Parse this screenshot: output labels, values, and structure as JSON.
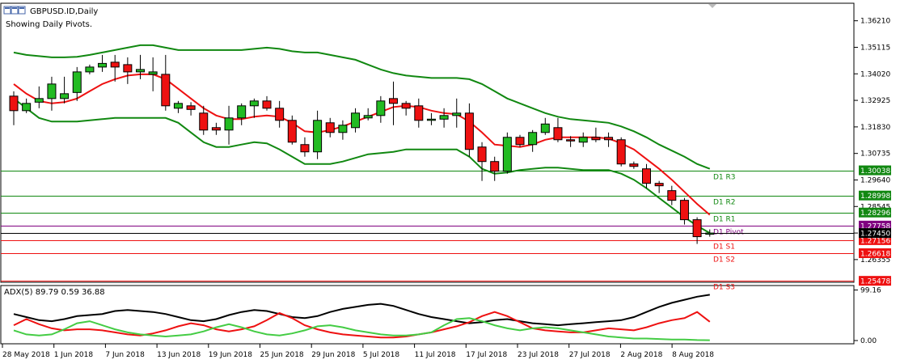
{
  "header": {
    "title": "GBPUSD.ID,Daily",
    "subtitle": "Showing Daily Pivots."
  },
  "colors": {
    "bull": "#22bb22",
    "bear": "#ee1111",
    "ma": "#ee1111",
    "band": "#118811",
    "r_line": "#118811",
    "pivot_line": "#800080",
    "s_line": "#ee1111",
    "adx_main": "#000000",
    "adx_minus": "#ee1111",
    "adx_plus": "#44cc44"
  },
  "chart_data": [
    {
      "type": "candlestick",
      "title": "GBPUSD.ID,Daily",
      "annotations": [
        "Showing Daily Pivots."
      ],
      "ylim": [
        1.2545,
        1.369
      ],
      "y_ticks": [
        "1.36210",
        "1.35115",
        "1.34020",
        "1.32925",
        "1.31830",
        "1.30735",
        "1.29640",
        "1.28545",
        "1.27450",
        "1.26355"
      ],
      "x_labels": [
        "28 May 2018",
        "1 Jun 2018",
        "7 Jun 2018",
        "13 Jun 2018",
        "19 Jun 2018",
        "25 Jun 2018",
        "29 Jun 2018",
        "5 Jul 2018",
        "11 Jul 2018",
        "17 Jul 2018",
        "23 Jul 2018",
        "27 Jul 2018",
        "2 Aug 2018",
        "8 Aug 2018"
      ],
      "candles": [
        {
          "o": 1.331,
          "h": 1.333,
          "l": 1.319,
          "c": 1.325
        },
        {
          "o": 1.325,
          "h": 1.33,
          "l": 1.324,
          "c": 1.328
        },
        {
          "o": 1.3285,
          "h": 1.335,
          "l": 1.326,
          "c": 1.33
        },
        {
          "o": 1.33,
          "h": 1.339,
          "l": 1.325,
          "c": 1.336
        },
        {
          "o": 1.33,
          "h": 1.339,
          "l": 1.328,
          "c": 1.332
        },
        {
          "o": 1.3325,
          "h": 1.343,
          "l": 1.329,
          "c": 1.341
        },
        {
          "o": 1.341,
          "h": 1.344,
          "l": 1.34,
          "c": 1.343
        },
        {
          "o": 1.343,
          "h": 1.348,
          "l": 1.341,
          "c": 1.3445
        },
        {
          "o": 1.345,
          "h": 1.348,
          "l": 1.337,
          "c": 1.343
        },
        {
          "o": 1.344,
          "h": 1.347,
          "l": 1.336,
          "c": 1.341
        },
        {
          "o": 1.341,
          "h": 1.348,
          "l": 1.338,
          "c": 1.342
        },
        {
          "o": 1.34,
          "h": 1.347,
          "l": 1.333,
          "c": 1.341
        },
        {
          "o": 1.34,
          "h": 1.348,
          "l": 1.325,
          "c": 1.327
        },
        {
          "o": 1.326,
          "h": 1.329,
          "l": 1.324,
          "c": 1.328
        },
        {
          "o": 1.327,
          "h": 1.3285,
          "l": 1.323,
          "c": 1.3255
        },
        {
          "o": 1.324,
          "h": 1.327,
          "l": 1.315,
          "c": 1.317
        },
        {
          "o": 1.318,
          "h": 1.32,
          "l": 1.315,
          "c": 1.317
        },
        {
          "o": 1.317,
          "h": 1.327,
          "l": 1.311,
          "c": 1.322
        },
        {
          "o": 1.322,
          "h": 1.328,
          "l": 1.319,
          "c": 1.327
        },
        {
          "o": 1.327,
          "h": 1.33,
          "l": 1.322,
          "c": 1.329
        },
        {
          "o": 1.329,
          "h": 1.331,
          "l": 1.325,
          "c": 1.326
        },
        {
          "o": 1.326,
          "h": 1.329,
          "l": 1.318,
          "c": 1.321
        },
        {
          "o": 1.321,
          "h": 1.323,
          "l": 1.311,
          "c": 1.312
        },
        {
          "o": 1.311,
          "h": 1.314,
          "l": 1.306,
          "c": 1.308
        },
        {
          "o": 1.308,
          "h": 1.325,
          "l": 1.305,
          "c": 1.321
        },
        {
          "o": 1.32,
          "h": 1.322,
          "l": 1.314,
          "c": 1.316
        },
        {
          "o": 1.316,
          "h": 1.321,
          "l": 1.313,
          "c": 1.319
        },
        {
          "o": 1.318,
          "h": 1.326,
          "l": 1.316,
          "c": 1.324
        },
        {
          "o": 1.322,
          "h": 1.326,
          "l": 1.321,
          "c": 1.323
        },
        {
          "o": 1.323,
          "h": 1.331,
          "l": 1.32,
          "c": 1.329
        },
        {
          "o": 1.33,
          "h": 1.337,
          "l": 1.319,
          "c": 1.328
        },
        {
          "o": 1.328,
          "h": 1.329,
          "l": 1.323,
          "c": 1.326
        },
        {
          "o": 1.327,
          "h": 1.33,
          "l": 1.318,
          "c": 1.321
        },
        {
          "o": 1.321,
          "h": 1.324,
          "l": 1.319,
          "c": 1.3215
        },
        {
          "o": 1.3215,
          "h": 1.326,
          "l": 1.318,
          "c": 1.323
        },
        {
          "o": 1.323,
          "h": 1.33,
          "l": 1.318,
          "c": 1.324
        },
        {
          "o": 1.324,
          "h": 1.328,
          "l": 1.306,
          "c": 1.309
        },
        {
          "o": 1.31,
          "h": 1.312,
          "l": 1.296,
          "c": 1.304
        },
        {
          "o": 1.304,
          "h": 1.306,
          "l": 1.296,
          "c": 1.3
        },
        {
          "o": 1.3,
          "h": 1.316,
          "l": 1.299,
          "c": 1.314
        },
        {
          "o": 1.314,
          "h": 1.315,
          "l": 1.31,
          "c": 1.311
        },
        {
          "o": 1.311,
          "h": 1.317,
          "l": 1.308,
          "c": 1.316
        },
        {
          "o": 1.316,
          "h": 1.322,
          "l": 1.315,
          "c": 1.3195
        },
        {
          "o": 1.318,
          "h": 1.322,
          "l": 1.312,
          "c": 1.313
        },
        {
          "o": 1.313,
          "h": 1.3145,
          "l": 1.31,
          "c": 1.3125
        },
        {
          "o": 1.312,
          "h": 1.316,
          "l": 1.31,
          "c": 1.314
        },
        {
          "o": 1.314,
          "h": 1.318,
          "l": 1.312,
          "c": 1.313
        },
        {
          "o": 1.314,
          "h": 1.316,
          "l": 1.31,
          "c": 1.313
        },
        {
          "o": 1.313,
          "h": 1.314,
          "l": 1.302,
          "c": 1.303
        },
        {
          "o": 1.303,
          "h": 1.304,
          "l": 1.301,
          "c": 1.302
        },
        {
          "o": 1.301,
          "h": 1.303,
          "l": 1.293,
          "c": 1.295
        },
        {
          "o": 1.295,
          "h": 1.296,
          "l": 1.291,
          "c": 1.294
        },
        {
          "o": 1.292,
          "h": 1.294,
          "l": 1.286,
          "c": 1.288
        },
        {
          "o": 1.288,
          "h": 1.289,
          "l": 1.278,
          "c": 1.28
        },
        {
          "o": 1.28,
          "h": 1.281,
          "l": 1.27,
          "c": 1.273
        },
        {
          "o": 1.274,
          "h": 1.276,
          "l": 1.273,
          "c": 1.2745
        }
      ],
      "moving_average": [
        1.336,
        1.332,
        1.329,
        1.328,
        1.3285,
        1.33,
        1.333,
        1.336,
        1.338,
        1.3395,
        1.34,
        1.34,
        1.338,
        1.334,
        1.33,
        1.326,
        1.323,
        1.3215,
        1.3215,
        1.3225,
        1.323,
        1.3225,
        1.32,
        1.3165,
        1.316,
        1.317,
        1.3185,
        1.3205,
        1.3225,
        1.3245,
        1.3265,
        1.327,
        1.3265,
        1.325,
        1.324,
        1.3235,
        1.3205,
        1.316,
        1.311,
        1.3105,
        1.31,
        1.311,
        1.313,
        1.314,
        1.314,
        1.314,
        1.314,
        1.3135,
        1.3115,
        1.309,
        1.305,
        1.301,
        1.2965,
        1.2915,
        1.2865,
        1.282
      ],
      "upper_band": [
        1.349,
        1.348,
        1.3475,
        1.347,
        1.347,
        1.3472,
        1.348,
        1.349,
        1.35,
        1.351,
        1.352,
        1.352,
        1.351,
        1.35,
        1.35,
        1.35,
        1.35,
        1.35,
        1.35,
        1.3505,
        1.351,
        1.3505,
        1.3495,
        1.349,
        1.349,
        1.348,
        1.347,
        1.346,
        1.344,
        1.342,
        1.3405,
        1.3395,
        1.339,
        1.3385,
        1.3385,
        1.3385,
        1.338,
        1.336,
        1.333,
        1.33,
        1.328,
        1.326,
        1.324,
        1.3225,
        1.3215,
        1.321,
        1.3205,
        1.32,
        1.3185,
        1.3165,
        1.314,
        1.311,
        1.3085,
        1.306,
        1.303,
        1.301
      ],
      "lower_band": [
        1.33,
        1.326,
        1.322,
        1.3205,
        1.3205,
        1.3205,
        1.321,
        1.3215,
        1.322,
        1.322,
        1.322,
        1.322,
        1.322,
        1.32,
        1.316,
        1.312,
        1.31,
        1.31,
        1.311,
        1.312,
        1.3115,
        1.309,
        1.306,
        1.303,
        1.303,
        1.303,
        1.304,
        1.3055,
        1.307,
        1.3075,
        1.308,
        1.309,
        1.309,
        1.309,
        1.309,
        1.309,
        1.306,
        1.301,
        1.299,
        1.2995,
        1.3005,
        1.301,
        1.3015,
        1.3015,
        1.301,
        1.3005,
        1.3005,
        1.3005,
        1.299,
        1.2965,
        1.293,
        1.289,
        1.285,
        1.281,
        1.2775,
        1.2745
      ],
      "pivot_levels": [
        {
          "label": "D1 R3",
          "value": 1.30038,
          "value_text": "1.30038",
          "kind": "r",
          "labeled_axis": true
        },
        {
          "label": "D1 R2",
          "value": 1.28998,
          "value_text": "1.28998",
          "kind": "r",
          "labeled_axis": true
        },
        {
          "label": "D1 R1",
          "value": 1.28296,
          "value_text": "1.28296",
          "kind": "r",
          "labeled_axis": true
        },
        {
          "label": "D1 Pivot",
          "value": 1.27758,
          "value_text": "1.27758",
          "kind": "p",
          "labeled_axis": true
        },
        {
          "label": "D1 S1",
          "value": 1.27156,
          "value_text": "1.27156",
          "kind": "s",
          "labeled_axis": true
        },
        {
          "label": "D1 S2",
          "value": 1.26618,
          "value_text": "1.26618",
          "kind": "s",
          "labeled_axis": true
        },
        {
          "label": "D1 S3",
          "value": 1.25478,
          "value_text": "1.25478",
          "kind": "s",
          "labeled_axis": true
        }
      ],
      "current_price": {
        "value": 1.2745,
        "text": "1.27450"
      }
    },
    {
      "type": "line",
      "title": "ADX(5) 89.79 0.59 36.88",
      "ylim": [
        0,
        100
      ],
      "y_ticks": [
        {
          "value": 99.16,
          "text": "99.16"
        },
        {
          "value": 0.0,
          "text": "0.00"
        }
      ],
      "series": [
        {
          "name": "ADX",
          "color": "#000000",
          "values": [
            52,
            46,
            40,
            38,
            42,
            48,
            50,
            52,
            58,
            60,
            58,
            56,
            52,
            46,
            40,
            38,
            42,
            50,
            56,
            60,
            58,
            52,
            46,
            44,
            48,
            56,
            62,
            66,
            70,
            72,
            68,
            60,
            52,
            46,
            42,
            38,
            34,
            36,
            40,
            42,
            38,
            34,
            32,
            30,
            32,
            34,
            36,
            38,
            40,
            46,
            56,
            66,
            74,
            80,
            86,
            89.79
          ]
        },
        {
          "name": "-DI",
          "color": "#ee1111",
          "values": [
            30,
            42,
            32,
            24,
            20,
            22,
            22,
            20,
            16,
            12,
            10,
            14,
            20,
            28,
            34,
            30,
            22,
            18,
            22,
            28,
            40,
            54,
            44,
            30,
            22,
            16,
            12,
            10,
            8,
            6,
            6,
            8,
            12,
            16,
            22,
            28,
            36,
            48,
            56,
            48,
            36,
            24,
            20,
            18,
            16,
            16,
            20,
            24,
            22,
            20,
            26,
            34,
            40,
            44,
            56,
            36.88
          ]
        },
        {
          "name": "+DI",
          "color": "#44cc44",
          "values": [
            20,
            12,
            10,
            12,
            22,
            34,
            38,
            30,
            22,
            16,
            12,
            10,
            8,
            10,
            12,
            18,
            26,
            32,
            26,
            18,
            12,
            10,
            14,
            20,
            28,
            30,
            26,
            20,
            16,
            12,
            10,
            10,
            12,
            16,
            30,
            42,
            44,
            38,
            30,
            24,
            20,
            24,
            26,
            24,
            20,
            16,
            12,
            8,
            6,
            4,
            4,
            3,
            2,
            2,
            1,
            0.59
          ]
        }
      ]
    }
  ]
}
